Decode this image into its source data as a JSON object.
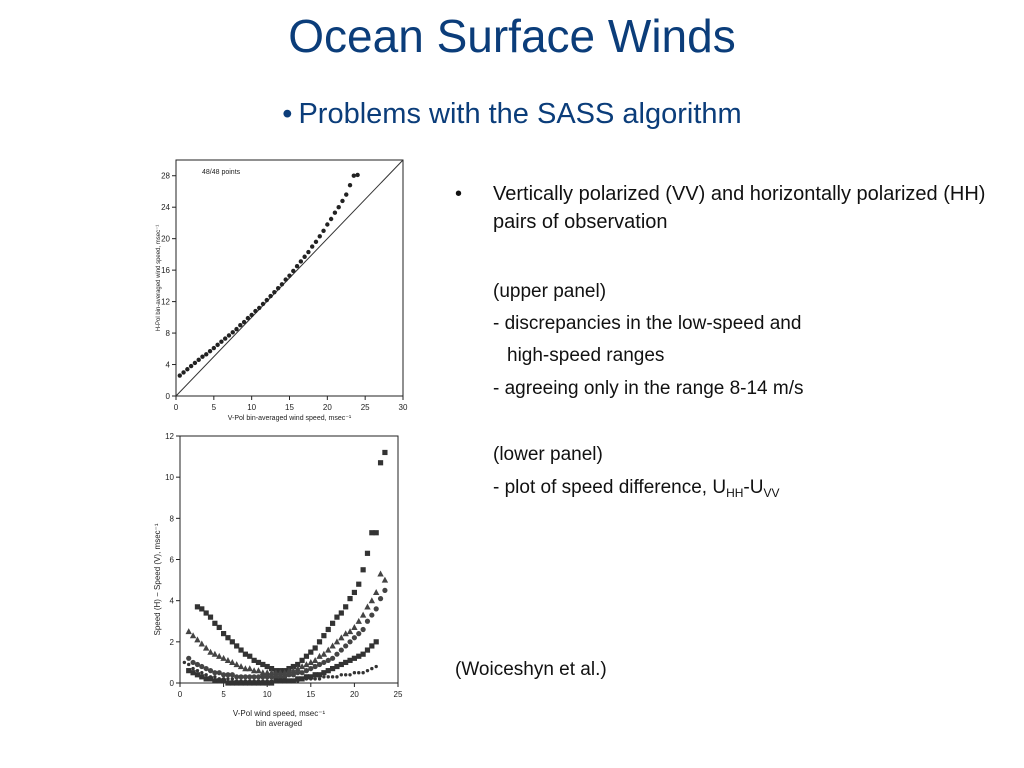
{
  "slide": {
    "title": "Ocean Surface Winds",
    "subtitle_bullet": "•",
    "subtitle": "Problems with the SASS algorithm",
    "bullet_symbol": "•",
    "bullet_text": "Vertically polarized (VV) and horizontally polarized (HH) pairs of observation",
    "upper_panel_label": "(upper panel)",
    "upper_line1": "- discrepancies in the low-speed and",
    "upper_line2": "high-speed ranges",
    "upper_line3": "- agreeing only in the range 8-14 m/s",
    "lower_panel_label": "(lower panel)",
    "lower_line1_prefix": "- plot of speed difference, U",
    "lower_sub_hh": "HH",
    "lower_dash": "-U",
    "lower_sub_vv": "VV",
    "citation": "(Woiceshyn et al.)"
  },
  "chart_data": [
    {
      "type": "scatter",
      "annotation": "48/48 points",
      "xlabel": "V-Pol bin-averaged wind speed, msec⁻¹",
      "ylabel": "H-Pol bin-averaged wind speed, msec⁻¹",
      "xlim": [
        0,
        30
      ],
      "ylim": [
        0,
        30
      ],
      "xticks": [
        "0",
        "5",
        "10",
        "15",
        "20",
        "25",
        "30"
      ],
      "yticks": [
        "0",
        "4",
        "8",
        "12",
        "16",
        "20",
        "24",
        "28"
      ],
      "reference_line": "y = x",
      "series": [
        {
          "x": [
            0.5,
            1.0,
            1.5,
            2.0,
            2.5,
            3.0,
            3.5,
            4.0,
            4.5,
            5.0,
            5.5,
            6.0,
            6.5,
            7.0,
            7.5,
            8.0,
            8.5,
            9.0,
            9.5,
            10.0,
            10.5,
            11.0,
            11.5,
            12.0,
            12.5,
            13.0,
            13.5,
            14.0,
            14.5,
            15.0,
            15.5,
            16.0,
            16.5,
            17.0,
            17.5,
            18.0,
            18.5,
            19.0,
            19.5,
            20.0,
            20.5,
            21.0,
            21.5,
            22.0,
            22.5,
            23.0,
            23.5,
            24.0
          ],
          "y": [
            2.6,
            3.0,
            3.4,
            3.8,
            4.2,
            4.6,
            5.0,
            5.3,
            5.7,
            6.1,
            6.5,
            6.9,
            7.3,
            7.7,
            8.1,
            8.5,
            9.0,
            9.4,
            9.9,
            10.3,
            10.8,
            11.2,
            11.7,
            12.2,
            12.7,
            13.2,
            13.7,
            14.2,
            14.8,
            15.3,
            15.9,
            16.5,
            17.1,
            17.7,
            18.3,
            19.0,
            19.6,
            20.3,
            21.0,
            21.8,
            22.5,
            23.3,
            24.0,
            24.8,
            25.6,
            26.8,
            28.0,
            28.1
          ]
        }
      ]
    },
    {
      "type": "scatter",
      "xlabel": "V-Pol wind speed, msec⁻¹",
      "xlabel2": "bin averaged",
      "ylabel": "Speed (H) − Speed (V), msec⁻¹",
      "xlim": [
        0,
        25
      ],
      "ylim": [
        0,
        12
      ],
      "xticks": [
        "0",
        "5",
        "10",
        "15",
        "20",
        "25"
      ],
      "yticks": [
        "0",
        "2",
        "4",
        "6",
        "8",
        "10",
        "12"
      ],
      "series": [
        {
          "marker": "square",
          "x": [
            2,
            2.5,
            3,
            3.5,
            4,
            4.5,
            5,
            5.5,
            6,
            6.5,
            7,
            7.5,
            8,
            8.5,
            9,
            9.5,
            10,
            10.5,
            11,
            11.5,
            12,
            12.5,
            13,
            13.5,
            14,
            14.5,
            15,
            15.5,
            16,
            16.5,
            17,
            17.5,
            18,
            18.5,
            19,
            19.5,
            20,
            20.5,
            21,
            21.5,
            22,
            22.5,
            23,
            23.5
          ],
          "y": [
            3.7,
            3.6,
            3.4,
            3.2,
            2.9,
            2.7,
            2.4,
            2.2,
            2.0,
            1.8,
            1.6,
            1.4,
            1.3,
            1.1,
            1.0,
            0.9,
            0.8,
            0.7,
            0.6,
            0.6,
            0.6,
            0.7,
            0.8,
            0.9,
            1.1,
            1.3,
            1.5,
            1.7,
            2.0,
            2.3,
            2.6,
            2.9,
            3.2,
            3.4,
            3.7,
            4.1,
            4.4,
            4.8,
            5.5,
            6.3,
            7.3,
            7.3,
            10.7,
            11.2
          ]
        },
        {
          "marker": "triangle",
          "x": [
            1,
            1.5,
            2,
            2.5,
            3,
            3.5,
            4,
            4.5,
            5,
            5.5,
            6,
            6.5,
            7,
            7.5,
            8,
            8.5,
            9,
            9.5,
            10,
            10.5,
            11,
            11.5,
            12,
            12.5,
            13,
            13.5,
            14,
            14.5,
            15,
            15.5,
            16,
            16.5,
            17,
            17.5,
            18,
            18.5,
            19,
            19.5,
            20,
            20.5,
            21,
            21.5,
            22,
            22.5,
            23,
            23.5
          ],
          "y": [
            2.5,
            2.3,
            2.1,
            1.9,
            1.7,
            1.5,
            1.4,
            1.3,
            1.2,
            1.1,
            1.0,
            0.9,
            0.8,
            0.7,
            0.7,
            0.6,
            0.6,
            0.5,
            0.5,
            0.5,
            0.5,
            0.5,
            0.5,
            0.6,
            0.6,
            0.7,
            0.8,
            0.9,
            1.0,
            1.1,
            1.3,
            1.4,
            1.6,
            1.8,
            2.0,
            2.2,
            2.4,
            2.5,
            2.7,
            3.0,
            3.3,
            3.7,
            4.0,
            4.4,
            5.3,
            5.0
          ]
        },
        {
          "marker": "circle",
          "x": [
            1,
            1.5,
            2,
            2.5,
            3,
            3.5,
            4,
            4.5,
            5,
            5.5,
            6,
            6.5,
            7,
            7.5,
            8,
            8.5,
            9,
            9.5,
            10,
            10.5,
            11,
            11.5,
            12,
            12.5,
            13,
            13.5,
            14,
            14.5,
            15,
            15.5,
            16,
            16.5,
            17,
            17.5,
            18,
            18.5,
            19,
            19.5,
            20,
            20.5,
            21,
            21.5,
            22,
            22.5,
            23,
            23.5
          ],
          "y": [
            1.2,
            1.0,
            0.9,
            0.8,
            0.7,
            0.6,
            0.5,
            0.5,
            0.4,
            0.4,
            0.4,
            0.3,
            0.3,
            0.3,
            0.3,
            0.3,
            0.3,
            0.3,
            0.3,
            0.3,
            0.3,
            0.3,
            0.3,
            0.4,
            0.4,
            0.5,
            0.5,
            0.6,
            0.7,
            0.8,
            0.9,
            1.0,
            1.1,
            1.2,
            1.4,
            1.6,
            1.8,
            2.0,
            2.2,
            2.4,
            2.6,
            3.0,
            3.3,
            3.6,
            4.1,
            4.5
          ]
        },
        {
          "marker": "square",
          "x": [
            1,
            1.5,
            2,
            2.5,
            3,
            3.5,
            4,
            4.5,
            5,
            5.5,
            6,
            6.5,
            7,
            7.5,
            8,
            8.5,
            9,
            9.5,
            10,
            10.5,
            11,
            11.5,
            12,
            12.5,
            13,
            13.5,
            14,
            14.5,
            15,
            15.5,
            16,
            16.5,
            17,
            17.5,
            18,
            18.5,
            19,
            19.5,
            20,
            20.5,
            21,
            21.5,
            22,
            22.5
          ],
          "y": [
            0.6,
            0.5,
            0.4,
            0.3,
            0.2,
            0.2,
            0.1,
            0.1,
            0.1,
            0.0,
            0.0,
            0.0,
            0.0,
            0.0,
            0.0,
            0.0,
            0.0,
            0.0,
            0.0,
            0.0,
            0.1,
            0.1,
            0.1,
            0.1,
            0.1,
            0.2,
            0.2,
            0.3,
            0.3,
            0.4,
            0.4,
            0.5,
            0.6,
            0.7,
            0.8,
            0.9,
            1.0,
            1.1,
            1.2,
            1.3,
            1.4,
            1.6,
            1.8,
            2.0
          ]
        },
        {
          "marker": "dot",
          "x": [
            0.5,
            1,
            1.5,
            2,
            2.5,
            3,
            3.5,
            4,
            4.5,
            5,
            5.5,
            6,
            6.5,
            7,
            7.5,
            8,
            8.5,
            9,
            9.5,
            10,
            10.5,
            11,
            11.5,
            12,
            12.5,
            13,
            13.5,
            14,
            14.5,
            15,
            15.5,
            16,
            16.5,
            17,
            17.5,
            18,
            18.5,
            19,
            19.5,
            20,
            20.5,
            21,
            21.5,
            22,
            22.5
          ],
          "y": [
            1.0,
            0.9,
            0.7,
            0.6,
            0.5,
            0.4,
            0.3,
            0.3,
            0.2,
            0.2,
            0.2,
            0.2,
            0.1,
            0.1,
            0.1,
            0.1,
            0.1,
            0.1,
            0.1,
            0.1,
            0.1,
            0.1,
            0.1,
            0.1,
            0.1,
            0.1,
            0.1,
            0.2,
            0.2,
            0.2,
            0.2,
            0.2,
            0.3,
            0.3,
            0.3,
            0.3,
            0.4,
            0.4,
            0.4,
            0.5,
            0.5,
            0.5,
            0.6,
            0.7,
            0.8
          ]
        }
      ]
    }
  ]
}
